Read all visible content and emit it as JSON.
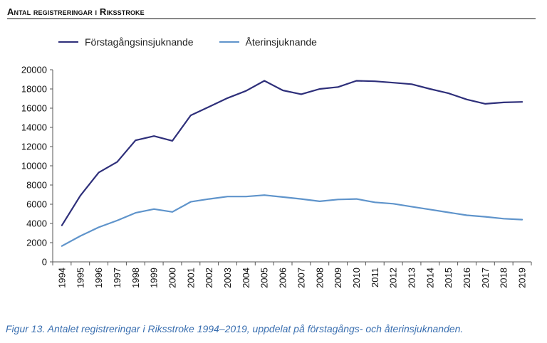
{
  "header": {
    "title": "Antal registreringar i Riksstroke"
  },
  "caption": "Figur 13. Antalet registreringar i Riksstroke 1994–2019, uppdelat på förstagångs- och återinsjuknanden.",
  "chart_data": {
    "type": "line",
    "title": "Antal registreringar i Riksstroke",
    "xlabel": "",
    "ylabel": "",
    "x": [
      "1994",
      "1995",
      "1996",
      "1997",
      "1998",
      "1999",
      "2000",
      "2001",
      "2002",
      "2003",
      "2004",
      "2005",
      "2006",
      "2007",
      "2008",
      "2009",
      "2010",
      "2011",
      "2012",
      "2013",
      "2014",
      "2015",
      "2016",
      "2017",
      "2018",
      "2019"
    ],
    "ylim": [
      0,
      20000
    ],
    "yticks": [
      0,
      2000,
      4000,
      6000,
      8000,
      10000,
      12000,
      14000,
      16000,
      18000,
      20000
    ],
    "grid": false,
    "legend_position": "top",
    "series": [
      {
        "name": "Förstagångsinsjuknande",
        "color": "#2e2f7a",
        "values": [
          3800,
          6900,
          9300,
          10400,
          12650,
          13100,
          12600,
          15250,
          16150,
          17050,
          17800,
          18850,
          17850,
          17450,
          18000,
          18200,
          18850,
          18800,
          18650,
          18500,
          18000,
          17550,
          16900,
          16450,
          16600,
          16650
        ]
      },
      {
        "name": "Återinsjuknande",
        "color": "#5f94cb",
        "values": [
          1650,
          2700,
          3600,
          4300,
          5100,
          5500,
          5200,
          6250,
          6550,
          6800,
          6800,
          6950,
          6750,
          6550,
          6300,
          6500,
          6550,
          6200,
          6050,
          5750,
          5450,
          5150,
          4850,
          4700,
          4500,
          4400
        ]
      }
    ]
  }
}
